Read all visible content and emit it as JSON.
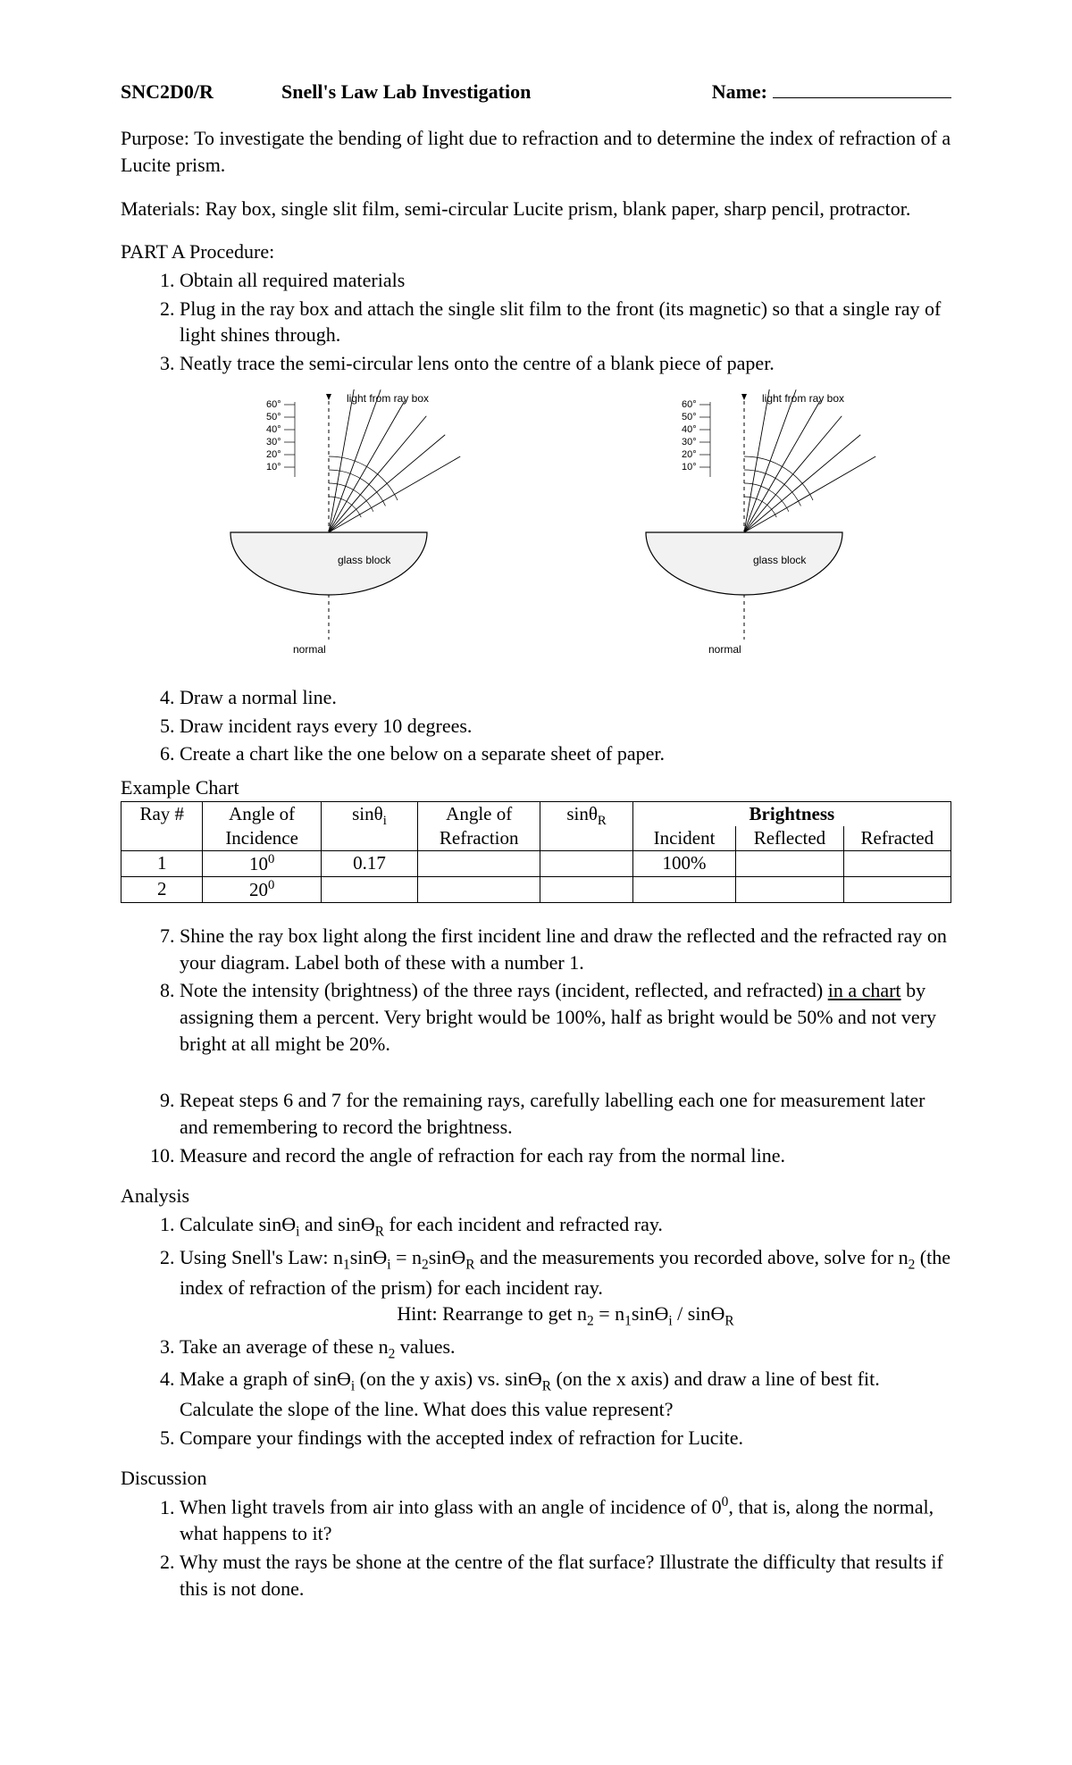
{
  "header": {
    "course": "SNC2D0/R",
    "title": "Snell's Law Lab Investigation",
    "name_label": "Name:"
  },
  "purpose": "Purpose:  To investigate the bending of light due to refraction and to determine the index of refraction of a Lucite prism.",
  "materials": "Materials:  Ray box, single slit film, semi-circular Lucite prism, blank paper, sharp pencil, protractor.",
  "partA_heading": "PART A Procedure:",
  "partA_steps_1_3": [
    "Obtain all required materials",
    "Plug in the ray box and attach the single slit film to the front (its magnetic) so that a single ray of light shines through.",
    "Neatly trace the semi-circular lens onto the centre of a blank piece of paper."
  ],
  "diagram": {
    "ray_box_label": "light from ray box",
    "angle_labels": [
      "60°",
      "50°",
      "40°",
      "30°",
      "20°",
      "10°"
    ],
    "glass_label": "glass block",
    "normal_label": "normal",
    "block_fill": "#f2f2f2",
    "stroke": "#000000",
    "ray_angles_deg": [
      10,
      20,
      30,
      40,
      50,
      60
    ],
    "arc_radii": [
      40,
      55,
      70,
      85
    ]
  },
  "partA_steps_4_6": [
    "Draw a normal line.",
    "Draw incident rays every 10 degrees.",
    "Create a chart like the one below on a separate sheet of paper."
  ],
  "chart_label": "Example Chart",
  "table": {
    "headers": {
      "ray": "Ray #",
      "angle_i": "Angle of Incidence",
      "sin_i": "sinθᵢ",
      "angle_r": "Angle of Refraction",
      "sin_r": "sinθR",
      "brightness": "Brightness",
      "b_incident": "Incident",
      "b_reflected": "Reflected",
      "b_refracted": "Refracted"
    },
    "rows": [
      {
        "ray": "1",
        "angle_i": "10⁰",
        "sin_i": "0.17",
        "angle_r": "",
        "sin_r": "",
        "b_i": "100%",
        "b_rl": "",
        "b_rf": ""
      },
      {
        "ray": "2",
        "angle_i": "20⁰",
        "sin_i": "",
        "angle_r": "",
        "sin_r": "",
        "b_i": "",
        "b_rl": "",
        "b_rf": ""
      }
    ]
  },
  "partA_steps_7_10": [
    "Shine the ray box light along the first incident line and draw the reflected and the refracted ray on your diagram.  Label both of these with a number 1.",
    "Note the intensity (brightness) of the three rays (incident, reflected, and refracted) <span class=\"underline\">in a chart</span> by assigning them a percent.  Very bright would be 100%, half as bright would be 50% and not very bright at all might be 20%.",
    "Repeat steps 6 and 7 for the remaining rays, carefully labelling each one for measurement later and remembering to record the brightness.",
    "Measure and record the angle of refraction for each ray from the normal line."
  ],
  "analysis_heading": "Analysis",
  "analysis_steps": [
    "Calculate sinϴ<span class=\"sub\">i</span> and sinϴ<span class=\"sub\">R</span> for each incident and refracted ray.",
    "Using Snell's Law: n<span class=\"sub\">1</span>sinϴ<span class=\"sub\">i</span> = n<span class=\"sub\">2</span>sinϴ<span class=\"sub\">R</span> and the measurements you recorded above, solve for n<span class=\"sub\">2</span> (the index of refraction of the prism) for each incident ray.",
    " Take an average of these n<span class=\"sub\">2</span> values.",
    " Make a graph of sinϴ<span class=\"sub\">i</span> (on the y axis) vs.  sinϴ<span class=\"sub\">R</span> (on the x axis) and draw a line of best fit.  Calculate the slope of the line.  What does this value represent?",
    " Compare your findings with the accepted index of refraction for Lucite."
  ],
  "hint": "Hint:  Rearrange to get n<span class=\"sub\">2</span> = n<span class=\"sub\">1</span>sinϴ<span class=\"sub\">i</span>  /  sinϴ<span class=\"sub\">R</span>",
  "discussion_heading": "Discussion",
  "discussion_steps": [
    "When light travels from air into glass with an angle of incidence of 0<span class=\"sup\">0</span>, that is, along the normal, what happens to it?",
    "Why must the rays be shone at the centre of the flat surface? Illustrate the difficulty that results if this is not done."
  ]
}
